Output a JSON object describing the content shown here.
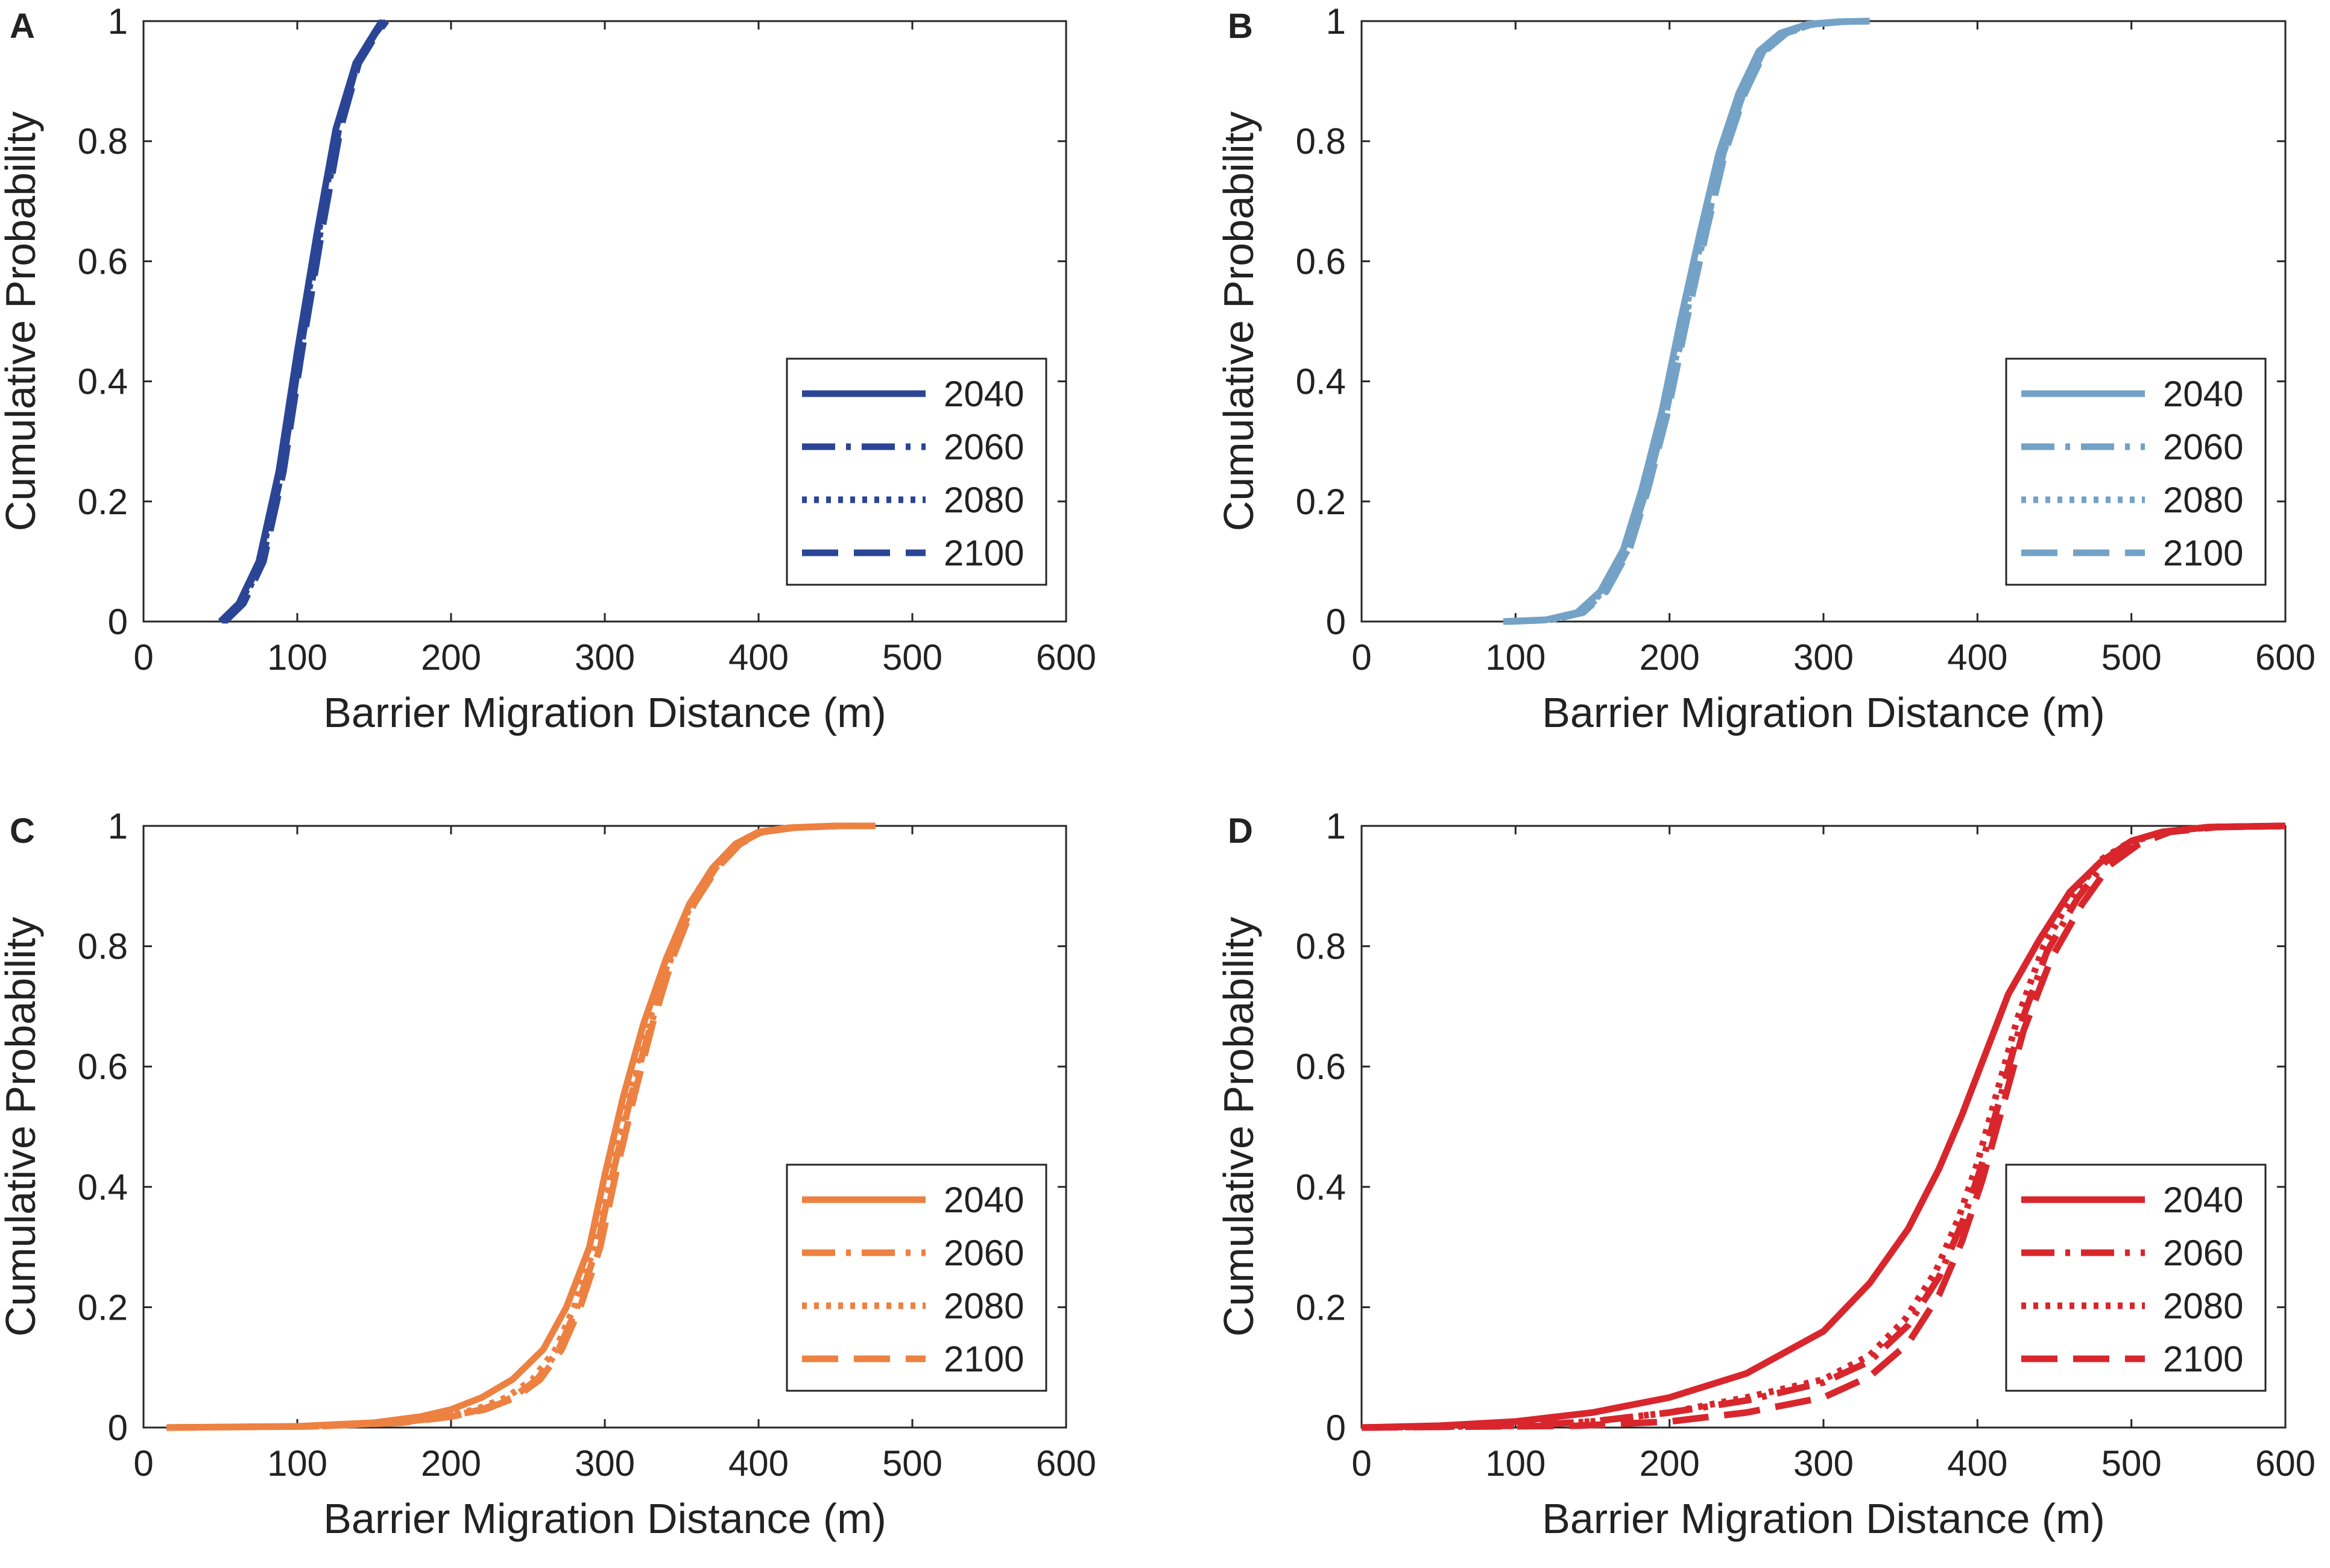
{
  "figure": {
    "panels": [
      "A",
      "B",
      "C",
      "D"
    ]
  },
  "chart_data": [
    {
      "panel": "A",
      "type": "line",
      "color": "#2B4596",
      "xlabel": "Barrier Migration Distance (m)",
      "ylabel": "Cumulative Probability",
      "xlim": [
        0,
        600
      ],
      "ylim": [
        0,
        1
      ],
      "xticks": [
        "0",
        "100",
        "200",
        "300",
        "400",
        "500",
        "600"
      ],
      "yticks": [
        "0",
        "0.2",
        "0.4",
        "0.6",
        "0.8",
        "1"
      ],
      "legend": {
        "location": "bottom-right",
        "entries": [
          "2040",
          "2060",
          "2080",
          "2100"
        ]
      },
      "series": [
        {
          "name": "2040",
          "style": "solid",
          "x": [
            50,
            62,
            75,
            88,
            100,
            113,
            125,
            138,
            150,
            155
          ],
          "y": [
            0,
            0.03,
            0.1,
            0.25,
            0.45,
            0.65,
            0.82,
            0.93,
            0.98,
            1.0
          ]
        },
        {
          "name": "2060",
          "style": "dashdot",
          "x": [
            52,
            64,
            77,
            90,
            102,
            115,
            127,
            139,
            151,
            157
          ],
          "y": [
            0,
            0.03,
            0.1,
            0.25,
            0.45,
            0.65,
            0.82,
            0.93,
            0.98,
            1.0
          ]
        },
        {
          "name": "2080",
          "style": "dotted",
          "x": [
            51,
            63,
            76,
            89,
            101,
            114,
            126,
            138,
            150,
            156
          ],
          "y": [
            0,
            0.03,
            0.1,
            0.25,
            0.45,
            0.65,
            0.82,
            0.93,
            0.98,
            1.0
          ]
        },
        {
          "name": "2100",
          "style": "dashed",
          "x": [
            53,
            65,
            78,
            91,
            103,
            116,
            128,
            140,
            152,
            158
          ],
          "y": [
            0,
            0.03,
            0.1,
            0.25,
            0.45,
            0.65,
            0.82,
            0.93,
            0.98,
            1.0
          ]
        }
      ]
    },
    {
      "panel": "B",
      "type": "line",
      "color": "#74A2C7",
      "xlabel": "Barrier Migration Distance (m)",
      "ylabel": "Cumulative Probability",
      "xlim": [
        0,
        600
      ],
      "ylim": [
        0,
        1
      ],
      "xticks": [
        "0",
        "100",
        "200",
        "300",
        "400",
        "500",
        "600"
      ],
      "yticks": [
        "0",
        "0.2",
        "0.4",
        "0.6",
        "0.8",
        "1"
      ],
      "legend": {
        "location": "bottom-right",
        "entries": [
          "2040",
          "2060",
          "2080",
          "2100"
        ]
      },
      "series": [
        {
          "name": "2040",
          "style": "solid",
          "x": [
            92,
            120,
            140,
            155,
            170,
            182,
            195,
            207,
            220,
            232,
            245,
            258,
            272,
            290,
            310,
            330
          ],
          "y": [
            0,
            0.003,
            0.015,
            0.05,
            0.12,
            0.22,
            0.35,
            0.5,
            0.65,
            0.78,
            0.88,
            0.95,
            0.98,
            0.995,
            0.999,
            1.0
          ]
        },
        {
          "name": "2060",
          "style": "dashdot",
          "x": [
            95,
            123,
            143,
            158,
            173,
            185,
            198,
            210,
            223,
            235,
            248,
            261,
            275,
            293,
            312,
            330
          ],
          "y": [
            0,
            0.003,
            0.015,
            0.05,
            0.12,
            0.22,
            0.35,
            0.5,
            0.65,
            0.78,
            0.88,
            0.95,
            0.98,
            0.995,
            0.999,
            1.0
          ]
        },
        {
          "name": "2080",
          "style": "dotted",
          "x": [
            94,
            122,
            142,
            157,
            172,
            184,
            197,
            209,
            222,
            234,
            247,
            260,
            274,
            292,
            311,
            330
          ],
          "y": [
            0,
            0.003,
            0.015,
            0.05,
            0.12,
            0.22,
            0.35,
            0.5,
            0.65,
            0.78,
            0.88,
            0.95,
            0.98,
            0.995,
            0.999,
            1.0
          ]
        },
        {
          "name": "2100",
          "style": "dashed",
          "x": [
            96,
            124,
            144,
            159,
            174,
            186,
            199,
            211,
            224,
            236,
            249,
            262,
            276,
            294,
            313,
            330
          ],
          "y": [
            0,
            0.003,
            0.015,
            0.05,
            0.12,
            0.22,
            0.35,
            0.5,
            0.65,
            0.78,
            0.88,
            0.95,
            0.98,
            0.995,
            0.999,
            1.0
          ]
        }
      ]
    },
    {
      "panel": "C",
      "type": "line",
      "color": "#ED8141",
      "xlabel": "Barrier Migration Distance (m)",
      "ylabel": "Cumulative Probability",
      "xlim": [
        0,
        600
      ],
      "ylim": [
        0,
        1
      ],
      "xticks": [
        "0",
        "100",
        "200",
        "300",
        "400",
        "500",
        "600"
      ],
      "yticks": [
        "0",
        "0.2",
        "0.4",
        "0.6",
        "0.8",
        "1"
      ],
      "legend": {
        "location": "bottom-right",
        "entries": [
          "2040",
          "2060",
          "2080",
          "2100"
        ]
      },
      "series": [
        {
          "name": "2040",
          "style": "solid",
          "x": [
            15,
            100,
            150,
            180,
            200,
            220,
            240,
            260,
            275,
            290,
            300,
            312,
            325,
            340,
            355,
            370,
            385,
            400,
            420,
            450,
            470
          ],
          "y": [
            0,
            0.002,
            0.008,
            0.018,
            0.03,
            0.05,
            0.08,
            0.13,
            0.2,
            0.3,
            0.42,
            0.55,
            0.67,
            0.78,
            0.87,
            0.93,
            0.97,
            0.99,
            0.997,
            1.0,
            1.0
          ]
        },
        {
          "name": "2060",
          "style": "dashdot",
          "x": [
            15,
            110,
            165,
            198,
            220,
            240,
            256,
            270,
            282,
            295,
            305,
            317,
            330,
            343,
            357,
            372,
            387,
            402,
            422,
            452,
            475
          ],
          "y": [
            0,
            0.002,
            0.008,
            0.018,
            0.03,
            0.05,
            0.08,
            0.13,
            0.2,
            0.3,
            0.42,
            0.55,
            0.67,
            0.78,
            0.87,
            0.93,
            0.97,
            0.99,
            0.997,
            1.0,
            1.0
          ]
        },
        {
          "name": "2080",
          "style": "dotted",
          "x": [
            15,
            108,
            162,
            194,
            216,
            236,
            253,
            268,
            280,
            293,
            303,
            315,
            328,
            342,
            356,
            371,
            386,
            401,
            421,
            451,
            474
          ],
          "y": [
            0,
            0.002,
            0.008,
            0.018,
            0.03,
            0.05,
            0.08,
            0.13,
            0.2,
            0.3,
            0.42,
            0.55,
            0.67,
            0.78,
            0.87,
            0.93,
            0.97,
            0.99,
            0.997,
            1.0,
            1.0
          ]
        },
        {
          "name": "2100",
          "style": "dashed",
          "x": [
            15,
            112,
            168,
            200,
            222,
            242,
            258,
            272,
            284,
            297,
            307,
            319,
            331,
            344,
            358,
            373,
            388,
            403,
            423,
            453,
            476
          ],
          "y": [
            0,
            0.002,
            0.008,
            0.018,
            0.03,
            0.05,
            0.08,
            0.13,
            0.2,
            0.3,
            0.42,
            0.55,
            0.67,
            0.78,
            0.87,
            0.93,
            0.97,
            0.99,
            0.997,
            1.0,
            1.0
          ]
        }
      ]
    },
    {
      "panel": "D",
      "type": "line",
      "color": "#D8262C",
      "xlabel": "Barrier Migration Distance (m)",
      "ylabel": "Cumulative Probability",
      "xlim": [
        0,
        600
      ],
      "ylim": [
        0,
        1
      ],
      "xticks": [
        "0",
        "100",
        "200",
        "300",
        "400",
        "500",
        "600"
      ],
      "yticks": [
        "0",
        "0.2",
        "0.4",
        "0.6",
        "0.8",
        "1"
      ],
      "legend": {
        "location": "bottom-right",
        "entries": [
          "2040",
          "2060",
          "2080",
          "2100"
        ]
      },
      "series": [
        {
          "name": "2040",
          "style": "solid",
          "x": [
            0,
            50,
            100,
            150,
            200,
            250,
            300,
            330,
            355,
            375,
            390,
            405,
            420,
            440,
            460,
            480,
            500,
            520,
            550,
            600
          ],
          "y": [
            0,
            0.003,
            0.01,
            0.025,
            0.05,
            0.09,
            0.16,
            0.24,
            0.33,
            0.43,
            0.52,
            0.62,
            0.72,
            0.81,
            0.89,
            0.94,
            0.975,
            0.99,
            0.998,
            1.0
          ]
        },
        {
          "name": "2060",
          "style": "dashdot",
          "x": [
            0,
            100,
            150,
            200,
            250,
            300,
            330,
            355,
            375,
            390,
            402,
            415,
            428,
            445,
            465,
            483,
            502,
            522,
            552,
            600
          ],
          "y": [
            0,
            0.003,
            0.01,
            0.025,
            0.045,
            0.075,
            0.11,
            0.17,
            0.25,
            0.34,
            0.43,
            0.55,
            0.67,
            0.79,
            0.88,
            0.94,
            0.975,
            0.99,
            0.998,
            1.0
          ]
        },
        {
          "name": "2080",
          "style": "dotted",
          "x": [
            0,
            100,
            150,
            200,
            250,
            300,
            330,
            353,
            373,
            388,
            400,
            413,
            426,
            443,
            463,
            481,
            500,
            520,
            550,
            600
          ],
          "y": [
            0,
            0.003,
            0.01,
            0.025,
            0.05,
            0.08,
            0.12,
            0.18,
            0.26,
            0.35,
            0.44,
            0.56,
            0.68,
            0.8,
            0.89,
            0.945,
            0.975,
            0.99,
            0.998,
            1.0
          ]
        },
        {
          "name": "2100",
          "style": "dashed",
          "x": [
            0,
            140,
            200,
            250,
            300,
            330,
            355,
            375,
            390,
            403,
            416,
            430,
            448,
            468,
            486,
            505,
            525,
            555,
            600
          ],
          "y": [
            0,
            0.003,
            0.01,
            0.025,
            0.05,
            0.085,
            0.14,
            0.22,
            0.31,
            0.41,
            0.53,
            0.66,
            0.78,
            0.87,
            0.935,
            0.97,
            0.99,
            0.998,
            1.0
          ]
        }
      ]
    }
  ]
}
